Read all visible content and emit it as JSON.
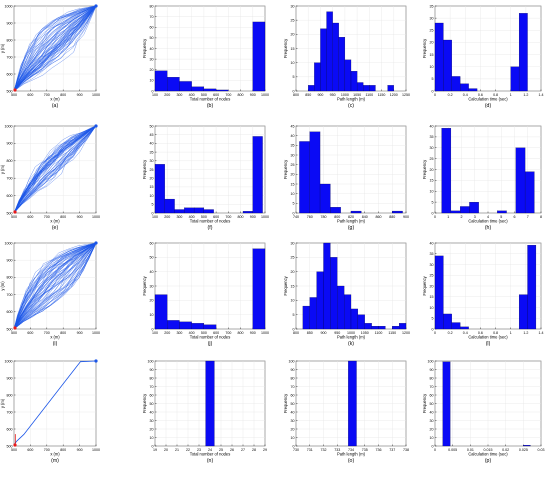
{
  "figure": {
    "panel_labels": [
      "(a)",
      "(b)",
      "(c)",
      "(d)",
      "(e)",
      "(f)",
      "(g)",
      "(h)",
      "(i)",
      "(j)",
      "(k)",
      "(l)",
      "(m)",
      "(n)",
      "(o)",
      "(p)"
    ],
    "colors": {
      "bar": "#0a0af5",
      "path": "#1a55e8",
      "start": "#e81a1a",
      "axis": "#000000",
      "grid": "#e6e6e6"
    }
  },
  "chart_data": [
    {
      "panel": "(a)",
      "type": "line",
      "xlabel": "x (m)",
      "ylabel": "y (m)",
      "xlim": [
        500,
        1000
      ],
      "ylim": [
        500,
        1000
      ],
      "xticks": [
        "500",
        "600",
        "700",
        "800",
        "900",
        "1000"
      ],
      "yticks": [
        "500",
        "600",
        "700",
        "800",
        "900",
        "1000"
      ],
      "start": [
        500,
        500
      ],
      "goal": [
        1000,
        1000
      ],
      "spread": "wide",
      "grid": true
    },
    {
      "panel": "(b)",
      "type": "bar",
      "xlabel": "Total number of nodes",
      "ylabel": "Frequency",
      "xlim": [
        100,
        1000
      ],
      "ylim": [
        0,
        80
      ],
      "xticks": [
        "100",
        "200",
        "300",
        "400",
        "500",
        "600",
        "700",
        "800",
        "900",
        "1000"
      ],
      "yticks": [
        "0",
        "10",
        "20",
        "30",
        "40",
        "50",
        "60",
        "70",
        "80"
      ],
      "bin_edges": [
        100,
        200,
        300,
        400,
        500,
        600,
        700,
        800,
        900,
        1000
      ],
      "values": [
        19,
        13,
        9,
        4,
        2,
        1,
        0,
        0,
        65
      ],
      "grid": true
    },
    {
      "panel": "(c)",
      "type": "bar",
      "xlabel": "Path length (m)",
      "ylabel": "Frequency",
      "xlim": [
        800,
        1250
      ],
      "ylim": [
        0,
        30
      ],
      "xticks": [
        "800",
        "850",
        "900",
        "950",
        "1000",
        "1050",
        "1100",
        "1150",
        "1200",
        "1250"
      ],
      "yticks": [
        "0",
        "5",
        "10",
        "15",
        "20",
        "25",
        "30"
      ],
      "bin_edges": [
        850,
        875,
        900,
        925,
        950,
        975,
        1000,
        1025,
        1050,
        1075,
        1100,
        1125,
        1150,
        1175,
        1200,
        1225
      ],
      "values": [
        2,
        10,
        22,
        28,
        24,
        19,
        11,
        7,
        3,
        2,
        2,
        0,
        0,
        2,
        0
      ],
      "grid": true
    },
    {
      "panel": "(d)",
      "type": "bar",
      "xlabel": "Calculation time (sec)",
      "ylabel": "Frequency",
      "xlim": [
        0,
        1.4
      ],
      "ylim": [
        0,
        35
      ],
      "xticks": [
        "0",
        "0.2",
        "0.4",
        "0.6",
        "0.8",
        "1",
        "1.2",
        "1.4"
      ],
      "yticks": [
        "0",
        "5",
        "10",
        "15",
        "20",
        "25",
        "30",
        "35"
      ],
      "bin_edges": [
        0,
        0.111,
        0.222,
        0.333,
        0.444,
        0.556,
        0.667,
        0.778,
        0.889,
        1.0,
        1.111,
        1.222
      ],
      "values": [
        28,
        21,
        6,
        3,
        1,
        0,
        0,
        0,
        0,
        10,
        32
      ],
      "grid": true
    },
    {
      "panel": "(e)",
      "type": "line",
      "xlabel": "x (m)",
      "ylabel": "y (m)",
      "xlim": [
        500,
        1000
      ],
      "ylim": [
        500,
        1000
      ],
      "xticks": [
        "500",
        "600",
        "700",
        "800",
        "900",
        "1000"
      ],
      "yticks": [
        "500",
        "600",
        "700",
        "800",
        "900",
        "1000"
      ],
      "start": [
        500,
        500
      ],
      "goal": [
        1000,
        1000
      ],
      "spread": "medium",
      "grid": true
    },
    {
      "panel": "(f)",
      "type": "bar",
      "xlabel": "Total number of nodes",
      "ylabel": "Frequency",
      "xlim": [
        100,
        1000
      ],
      "ylim": [
        0,
        50
      ],
      "xticks": [
        "100",
        "200",
        "300",
        "400",
        "500",
        "600",
        "700",
        "800",
        "900",
        "1000"
      ],
      "yticks": [
        "0",
        "5",
        "10",
        "15",
        "20",
        "25",
        "30",
        "35",
        "40",
        "45",
        "50"
      ],
      "bin_edges": [
        100,
        180,
        260,
        340,
        420,
        500,
        580,
        660,
        740,
        820,
        900,
        980
      ],
      "values": [
        28,
        8,
        2,
        3,
        3,
        2,
        0,
        0,
        0,
        1,
        44
      ],
      "grid": true
    },
    {
      "panel": "(g)",
      "type": "bar",
      "xlabel": "Path length (m)",
      "ylabel": "Frequency",
      "xlim": [
        740,
        900
      ],
      "ylim": [
        0,
        45
      ],
      "xticks": [
        "740",
        "760",
        "780",
        "800",
        "820",
        "840",
        "860",
        "880",
        "900"
      ],
      "yticks": [
        "0",
        "5",
        "10",
        "15",
        "20",
        "25",
        "30",
        "35",
        "40",
        "45"
      ],
      "bin_edges": [
        745,
        760,
        775,
        790,
        805,
        820,
        835,
        850,
        865,
        880,
        895
      ],
      "values": [
        37,
        42,
        15,
        3,
        0,
        1,
        0,
        0,
        0,
        1
      ],
      "grid": true
    },
    {
      "panel": "(h)",
      "type": "bar",
      "xlabel": "Calculation time (sec)",
      "ylabel": "Frequency",
      "xlim": [
        0,
        8
      ],
      "ylim": [
        0,
        40
      ],
      "xticks": [
        "0",
        "1",
        "2",
        "3",
        "4",
        "5",
        "6",
        "7",
        "8"
      ],
      "yticks": [
        "0",
        "5",
        "10",
        "15",
        "20",
        "25",
        "30",
        "35",
        "40"
      ],
      "bin_edges": [
        0.5,
        1.2,
        1.9,
        2.6,
        3.3,
        4.0,
        4.7,
        5.4,
        6.1,
        6.8,
        7.5
      ],
      "values": [
        39,
        1,
        3,
        5,
        0,
        0,
        1,
        0,
        30,
        19
      ],
      "grid": true
    },
    {
      "panel": "(i)",
      "type": "line",
      "xlabel": "x (m)",
      "ylabel": "y (m)",
      "xlim": [
        500,
        1000
      ],
      "ylim": [
        500,
        1000
      ],
      "xticks": [
        "500",
        "600",
        "700",
        "800",
        "900",
        "1000"
      ],
      "yticks": [
        "500",
        "600",
        "700",
        "800",
        "900",
        "1000"
      ],
      "start": [
        500,
        500
      ],
      "goal": [
        1000,
        1000
      ],
      "spread": "wide",
      "grid": true
    },
    {
      "panel": "(j)",
      "type": "bar",
      "xlabel": "Total number of nodes",
      "ylabel": "Frequency",
      "xlim": [
        100,
        1000
      ],
      "ylim": [
        0,
        60
      ],
      "xticks": [
        "100",
        "200",
        "300",
        "400",
        "500",
        "600",
        "700",
        "800",
        "900",
        "1000"
      ],
      "yticks": [
        "0",
        "10",
        "20",
        "30",
        "40",
        "50",
        "60"
      ],
      "bin_edges": [
        100,
        200,
        300,
        400,
        500,
        600,
        700,
        800,
        900,
        1000
      ],
      "values": [
        24,
        6,
        5,
        4,
        3,
        0,
        0,
        0,
        56
      ],
      "grid": true
    },
    {
      "panel": "(k)",
      "type": "bar",
      "xlabel": "Path length (m)",
      "ylabel": "Frequency",
      "xlim": [
        800,
        1200
      ],
      "ylim": [
        0,
        30
      ],
      "xticks": [
        "800",
        "850",
        "900",
        "950",
        "1000",
        "1050",
        "1100",
        "1150",
        "1200"
      ],
      "yticks": [
        "0",
        "5",
        "10",
        "15",
        "20",
        "25",
        "30"
      ],
      "bin_edges": [
        825,
        850,
        875,
        900,
        925,
        950,
        975,
        1000,
        1025,
        1050,
        1075,
        1100,
        1125,
        1150,
        1175,
        1200
      ],
      "values": [
        8,
        11,
        20,
        30,
        25,
        15,
        12,
        7,
        5,
        2,
        1,
        1,
        0,
        1,
        2
      ],
      "grid": true
    },
    {
      "panel": "(l)",
      "type": "bar",
      "xlabel": "Calculation time (sec)",
      "ylabel": "Frequency",
      "xlim": [
        0,
        1.4
      ],
      "ylim": [
        0,
        40
      ],
      "xticks": [
        "0",
        "0.2",
        "0.4",
        "0.6",
        "0.8",
        "1",
        "1.2",
        "1.4"
      ],
      "yticks": [
        "0",
        "5",
        "10",
        "15",
        "20",
        "25",
        "30",
        "35",
        "40"
      ],
      "bin_edges": [
        0,
        0.111,
        0.222,
        0.333,
        0.444,
        0.556,
        0.667,
        0.778,
        0.889,
        1.0,
        1.111,
        1.222,
        1.333
      ],
      "values": [
        34,
        7,
        3,
        1,
        0,
        0,
        0,
        0,
        0,
        0,
        16,
        39
      ],
      "grid": true
    },
    {
      "panel": "(m)",
      "type": "line",
      "xlabel": "x (m)",
      "ylabel": "y (m)",
      "xlim": [
        500,
        1000
      ],
      "ylim": [
        500,
        1000
      ],
      "xticks": [
        "500",
        "600",
        "700",
        "800",
        "900",
        "1000"
      ],
      "yticks": [
        "500",
        "600",
        "700",
        "800",
        "900",
        "1000"
      ],
      "start": [
        500,
        500
      ],
      "goal": [
        1000,
        1000
      ],
      "spread": "none",
      "grid": true
    },
    {
      "panel": "(n)",
      "type": "bar",
      "xlabel": "Total number of nodes",
      "ylabel": "Frequency",
      "xlim": [
        19,
        29
      ],
      "ylim": [
        0,
        100
      ],
      "xticks": [
        "19",
        "20",
        "21",
        "22",
        "23",
        "24",
        "25",
        "26",
        "27",
        "28",
        "29"
      ],
      "yticks": [
        "0",
        "10",
        "20",
        "30",
        "40",
        "50",
        "60",
        "70",
        "80",
        "90",
        "100"
      ],
      "bin_edges": [
        23.6,
        24.4
      ],
      "values": [
        100
      ],
      "grid": true
    },
    {
      "panel": "(o)",
      "type": "bar",
      "xlabel": "Path length (m)",
      "ylabel": "Frequency",
      "xlim": [
        730,
        738
      ],
      "ylim": [
        0,
        100
      ],
      "xticks": [
        "730",
        "731",
        "732",
        "733",
        "734",
        "735",
        "736",
        "737",
        "738"
      ],
      "yticks": [
        "0",
        "10",
        "20",
        "30",
        "40",
        "50",
        "60",
        "70",
        "80",
        "90",
        "100"
      ],
      "bin_edges": [
        733.8,
        734.4
      ],
      "values": [
        100
      ],
      "grid": true
    },
    {
      "panel": "(p)",
      "type": "bar",
      "xlabel": "Calculation time (sec)",
      "ylabel": "Frequency",
      "xlim": [
        0,
        0.03
      ],
      "ylim": [
        0,
        100
      ],
      "xticks": [
        "0",
        "0.005",
        "0.01",
        "0.015",
        "0.02",
        "0.025",
        "0.03"
      ],
      "yticks": [
        "0",
        "10",
        "20",
        "30",
        "40",
        "50",
        "60",
        "70",
        "80",
        "90",
        "100"
      ],
      "bin_edges": [
        0.0022,
        0.0043,
        0.025,
        0.027
      ],
      "values": [
        99,
        0,
        1
      ],
      "grid": true
    }
  ]
}
